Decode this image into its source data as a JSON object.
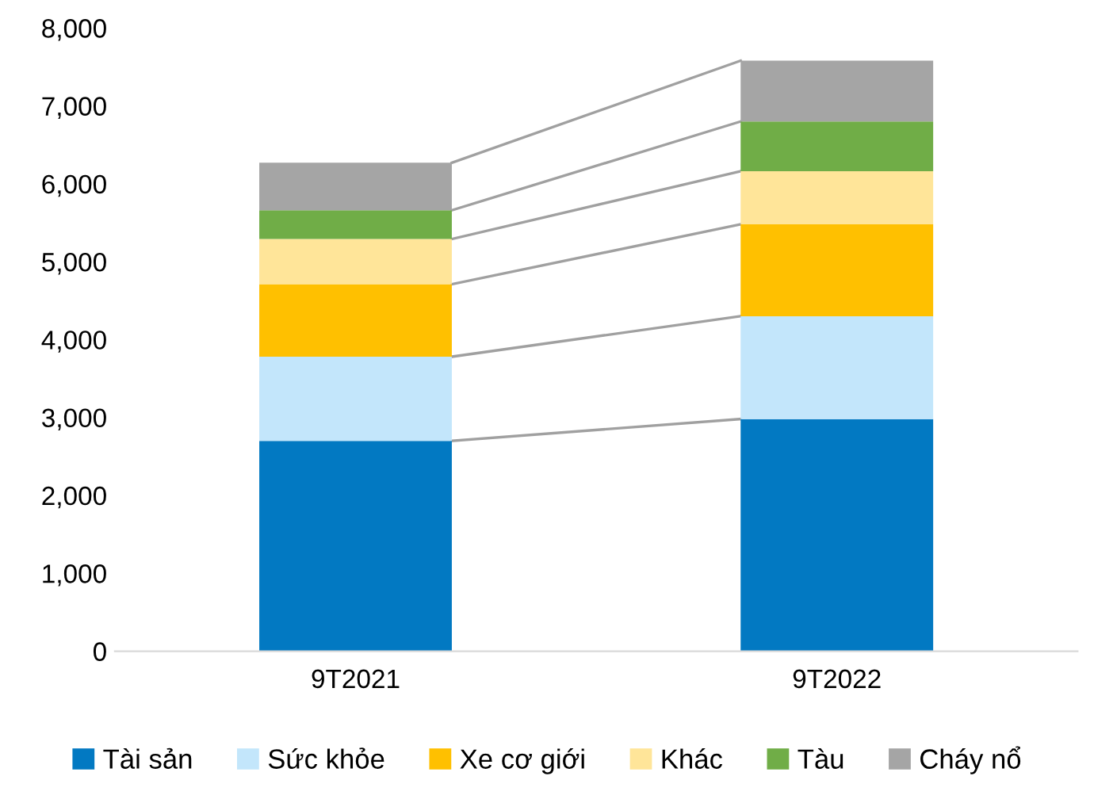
{
  "chart_data": {
    "type": "bar",
    "stacked": true,
    "categories": [
      "9T2021",
      "9T2022"
    ],
    "series": [
      {
        "name": "Tài sản",
        "color": "#0279c2",
        "values": [
          2700,
          2980
        ]
      },
      {
        "name": "Sức khỏe",
        "color": "#c3e6fb",
        "values": [
          1080,
          1320
        ]
      },
      {
        "name": "Xe cơ giới",
        "color": "#ffc000",
        "values": [
          930,
          1180
        ]
      },
      {
        "name": "Khác",
        "color": "#ffe599",
        "values": [
          580,
          680
        ]
      },
      {
        "name": "Tàu",
        "color": "#70ad47",
        "values": [
          370,
          640
        ]
      },
      {
        "name": "Cháy nổ",
        "color": "#a5a5a5",
        "values": [
          610,
          780
        ]
      }
    ],
    "ylim": [
      0,
      8000
    ],
    "yticks": [
      {
        "value": 0,
        "label": "0"
      },
      {
        "value": 1000,
        "label": "1,000"
      },
      {
        "value": 2000,
        "label": "2,000"
      },
      {
        "value": 3000,
        "label": "3,000"
      },
      {
        "value": 4000,
        "label": "4,000"
      },
      {
        "value": 5000,
        "label": "5,000"
      },
      {
        "value": 6000,
        "label": "6,000"
      },
      {
        "value": 7000,
        "label": "7,000"
      },
      {
        "value": 8000,
        "label": "8,000"
      }
    ],
    "grid": false,
    "legend": "bottom"
  }
}
